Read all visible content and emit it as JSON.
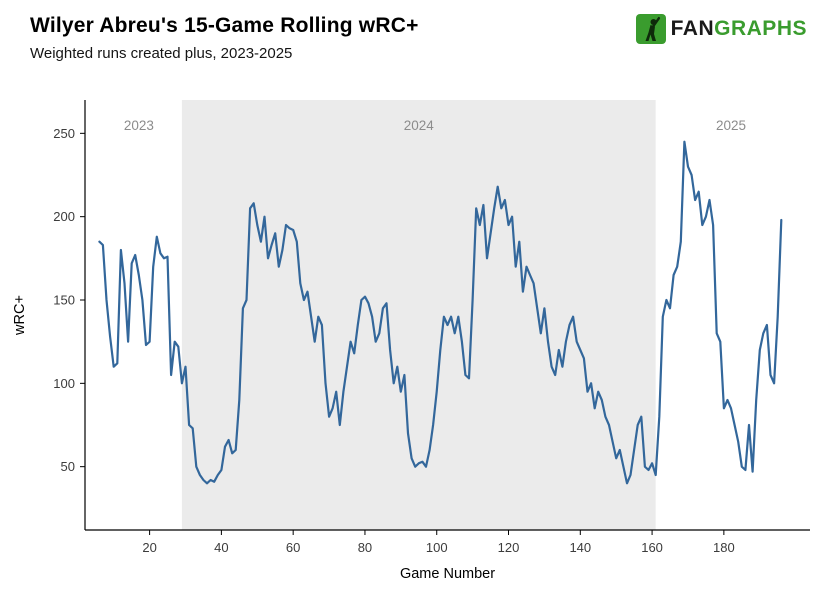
{
  "header": {
    "title": "Wilyer Abreu's 15-Game Rolling wRC+",
    "subtitle": "Weighted runs created plus, 2023-2025",
    "logo_fan": "FAN",
    "logo_graphs": "GRAPHS",
    "brand_green": "#3a9c2e"
  },
  "chart_data": {
    "type": "line",
    "title": "Wilyer Abreu's 15-Game Rolling wRC+",
    "subtitle": "Weighted runs created plus, 2023-2025",
    "xlabel": "Game Number",
    "ylabel": "wRC+",
    "xlim": [
      2,
      204
    ],
    "ylim": [
      12,
      270
    ],
    "x_ticks": [
      20,
      40,
      60,
      80,
      100,
      120,
      140,
      160,
      180
    ],
    "y_ticks": [
      50,
      100,
      150,
      200,
      250
    ],
    "grid": false,
    "legend": "none",
    "line_color": "#33679b",
    "axis_color": "#000000",
    "shaded_region": {
      "x_start": 29,
      "x_end": 161,
      "color": "#ebebeb",
      "label": "2024"
    },
    "annotations": [
      {
        "label": "2023",
        "x": 17,
        "y": 252
      },
      {
        "label": "2024",
        "x": 95,
        "y": 252
      },
      {
        "label": "2025",
        "x": 182,
        "y": 252
      }
    ],
    "series": [
      {
        "name": "15-Game Rolling wRC+",
        "points": [
          [
            6,
            185
          ],
          [
            7,
            183
          ],
          [
            8,
            150
          ],
          [
            9,
            128
          ],
          [
            10,
            110
          ],
          [
            11,
            112
          ],
          [
            12,
            180
          ],
          [
            13,
            160
          ],
          [
            14,
            125
          ],
          [
            15,
            172
          ],
          [
            16,
            177
          ],
          [
            17,
            165
          ],
          [
            18,
            150
          ],
          [
            19,
            123
          ],
          [
            20,
            125
          ],
          [
            21,
            170
          ],
          [
            22,
            188
          ],
          [
            23,
            178
          ],
          [
            24,
            175
          ],
          [
            25,
            176
          ],
          [
            26,
            105
          ],
          [
            27,
            125
          ],
          [
            28,
            122
          ],
          [
            29,
            100
          ],
          [
            30,
            110
          ],
          [
            31,
            75
          ],
          [
            32,
            73
          ],
          [
            33,
            50
          ],
          [
            34,
            45
          ],
          [
            35,
            42
          ],
          [
            36,
            40
          ],
          [
            37,
            42
          ],
          [
            38,
            41
          ],
          [
            39,
            45
          ],
          [
            40,
            48
          ],
          [
            41,
            62
          ],
          [
            42,
            66
          ],
          [
            43,
            58
          ],
          [
            44,
            60
          ],
          [
            45,
            90
          ],
          [
            46,
            145
          ],
          [
            47,
            150
          ],
          [
            48,
            205
          ],
          [
            49,
            208
          ],
          [
            50,
            195
          ],
          [
            51,
            185
          ],
          [
            52,
            200
          ],
          [
            53,
            175
          ],
          [
            54,
            183
          ],
          [
            55,
            190
          ],
          [
            56,
            170
          ],
          [
            57,
            180
          ],
          [
            58,
            195
          ],
          [
            59,
            193
          ],
          [
            60,
            192
          ],
          [
            61,
            185
          ],
          [
            62,
            160
          ],
          [
            63,
            150
          ],
          [
            64,
            155
          ],
          [
            65,
            140
          ],
          [
            66,
            125
          ],
          [
            67,
            140
          ],
          [
            68,
            135
          ],
          [
            69,
            100
          ],
          [
            70,
            80
          ],
          [
            71,
            85
          ],
          [
            72,
            95
          ],
          [
            73,
            75
          ],
          [
            74,
            95
          ],
          [
            75,
            110
          ],
          [
            76,
            125
          ],
          [
            77,
            118
          ],
          [
            78,
            135
          ],
          [
            79,
            150
          ],
          [
            80,
            152
          ],
          [
            81,
            148
          ],
          [
            82,
            140
          ],
          [
            83,
            125
          ],
          [
            84,
            130
          ],
          [
            85,
            145
          ],
          [
            86,
            148
          ],
          [
            87,
            120
          ],
          [
            88,
            100
          ],
          [
            89,
            110
          ],
          [
            90,
            95
          ],
          [
            91,
            105
          ],
          [
            92,
            70
          ],
          [
            93,
            55
          ],
          [
            94,
            50
          ],
          [
            95,
            52
          ],
          [
            96,
            53
          ],
          [
            97,
            50
          ],
          [
            98,
            60
          ],
          [
            99,
            75
          ],
          [
            100,
            95
          ],
          [
            101,
            120
          ],
          [
            102,
            140
          ],
          [
            103,
            135
          ],
          [
            104,
            140
          ],
          [
            105,
            130
          ],
          [
            106,
            140
          ],
          [
            107,
            125
          ],
          [
            108,
            105
          ],
          [
            109,
            103
          ],
          [
            110,
            150
          ],
          [
            111,
            205
          ],
          [
            112,
            195
          ],
          [
            113,
            207
          ],
          [
            114,
            175
          ],
          [
            115,
            190
          ],
          [
            116,
            205
          ],
          [
            117,
            218
          ],
          [
            118,
            205
          ],
          [
            119,
            210
          ],
          [
            120,
            195
          ],
          [
            121,
            200
          ],
          [
            122,
            170
          ],
          [
            123,
            185
          ],
          [
            124,
            155
          ],
          [
            125,
            170
          ],
          [
            126,
            165
          ],
          [
            127,
            160
          ],
          [
            128,
            145
          ],
          [
            129,
            130
          ],
          [
            130,
            145
          ],
          [
            131,
            125
          ],
          [
            132,
            110
          ],
          [
            133,
            105
          ],
          [
            134,
            120
          ],
          [
            135,
            110
          ],
          [
            136,
            125
          ],
          [
            137,
            135
          ],
          [
            138,
            140
          ],
          [
            139,
            125
          ],
          [
            140,
            120
          ],
          [
            141,
            115
          ],
          [
            142,
            95
          ],
          [
            143,
            100
          ],
          [
            144,
            85
          ],
          [
            145,
            95
          ],
          [
            146,
            90
          ],
          [
            147,
            80
          ],
          [
            148,
            75
          ],
          [
            149,
            65
          ],
          [
            150,
            55
          ],
          [
            151,
            60
          ],
          [
            152,
            50
          ],
          [
            153,
            40
          ],
          [
            154,
            45
          ],
          [
            155,
            60
          ],
          [
            156,
            75
          ],
          [
            157,
            80
          ],
          [
            158,
            50
          ],
          [
            159,
            48
          ],
          [
            160,
            52
          ],
          [
            161,
            45
          ],
          [
            162,
            80
          ],
          [
            163,
            140
          ],
          [
            164,
            150
          ],
          [
            165,
            145
          ],
          [
            166,
            165
          ],
          [
            167,
            170
          ],
          [
            168,
            185
          ],
          [
            169,
            245
          ],
          [
            170,
            230
          ],
          [
            171,
            225
          ],
          [
            172,
            210
          ],
          [
            173,
            215
          ],
          [
            174,
            195
          ],
          [
            175,
            200
          ],
          [
            176,
            210
          ],
          [
            177,
            195
          ],
          [
            178,
            130
          ],
          [
            179,
            125
          ],
          [
            180,
            85
          ],
          [
            181,
            90
          ],
          [
            182,
            85
          ],
          [
            183,
            75
          ],
          [
            184,
            65
          ],
          [
            185,
            50
          ],
          [
            186,
            48
          ],
          [
            187,
            75
          ],
          [
            188,
            47
          ],
          [
            189,
            90
          ],
          [
            190,
            120
          ],
          [
            191,
            130
          ],
          [
            192,
            135
          ],
          [
            193,
            105
          ],
          [
            194,
            100
          ],
          [
            195,
            140
          ],
          [
            196,
            198
          ]
        ]
      }
    ]
  }
}
